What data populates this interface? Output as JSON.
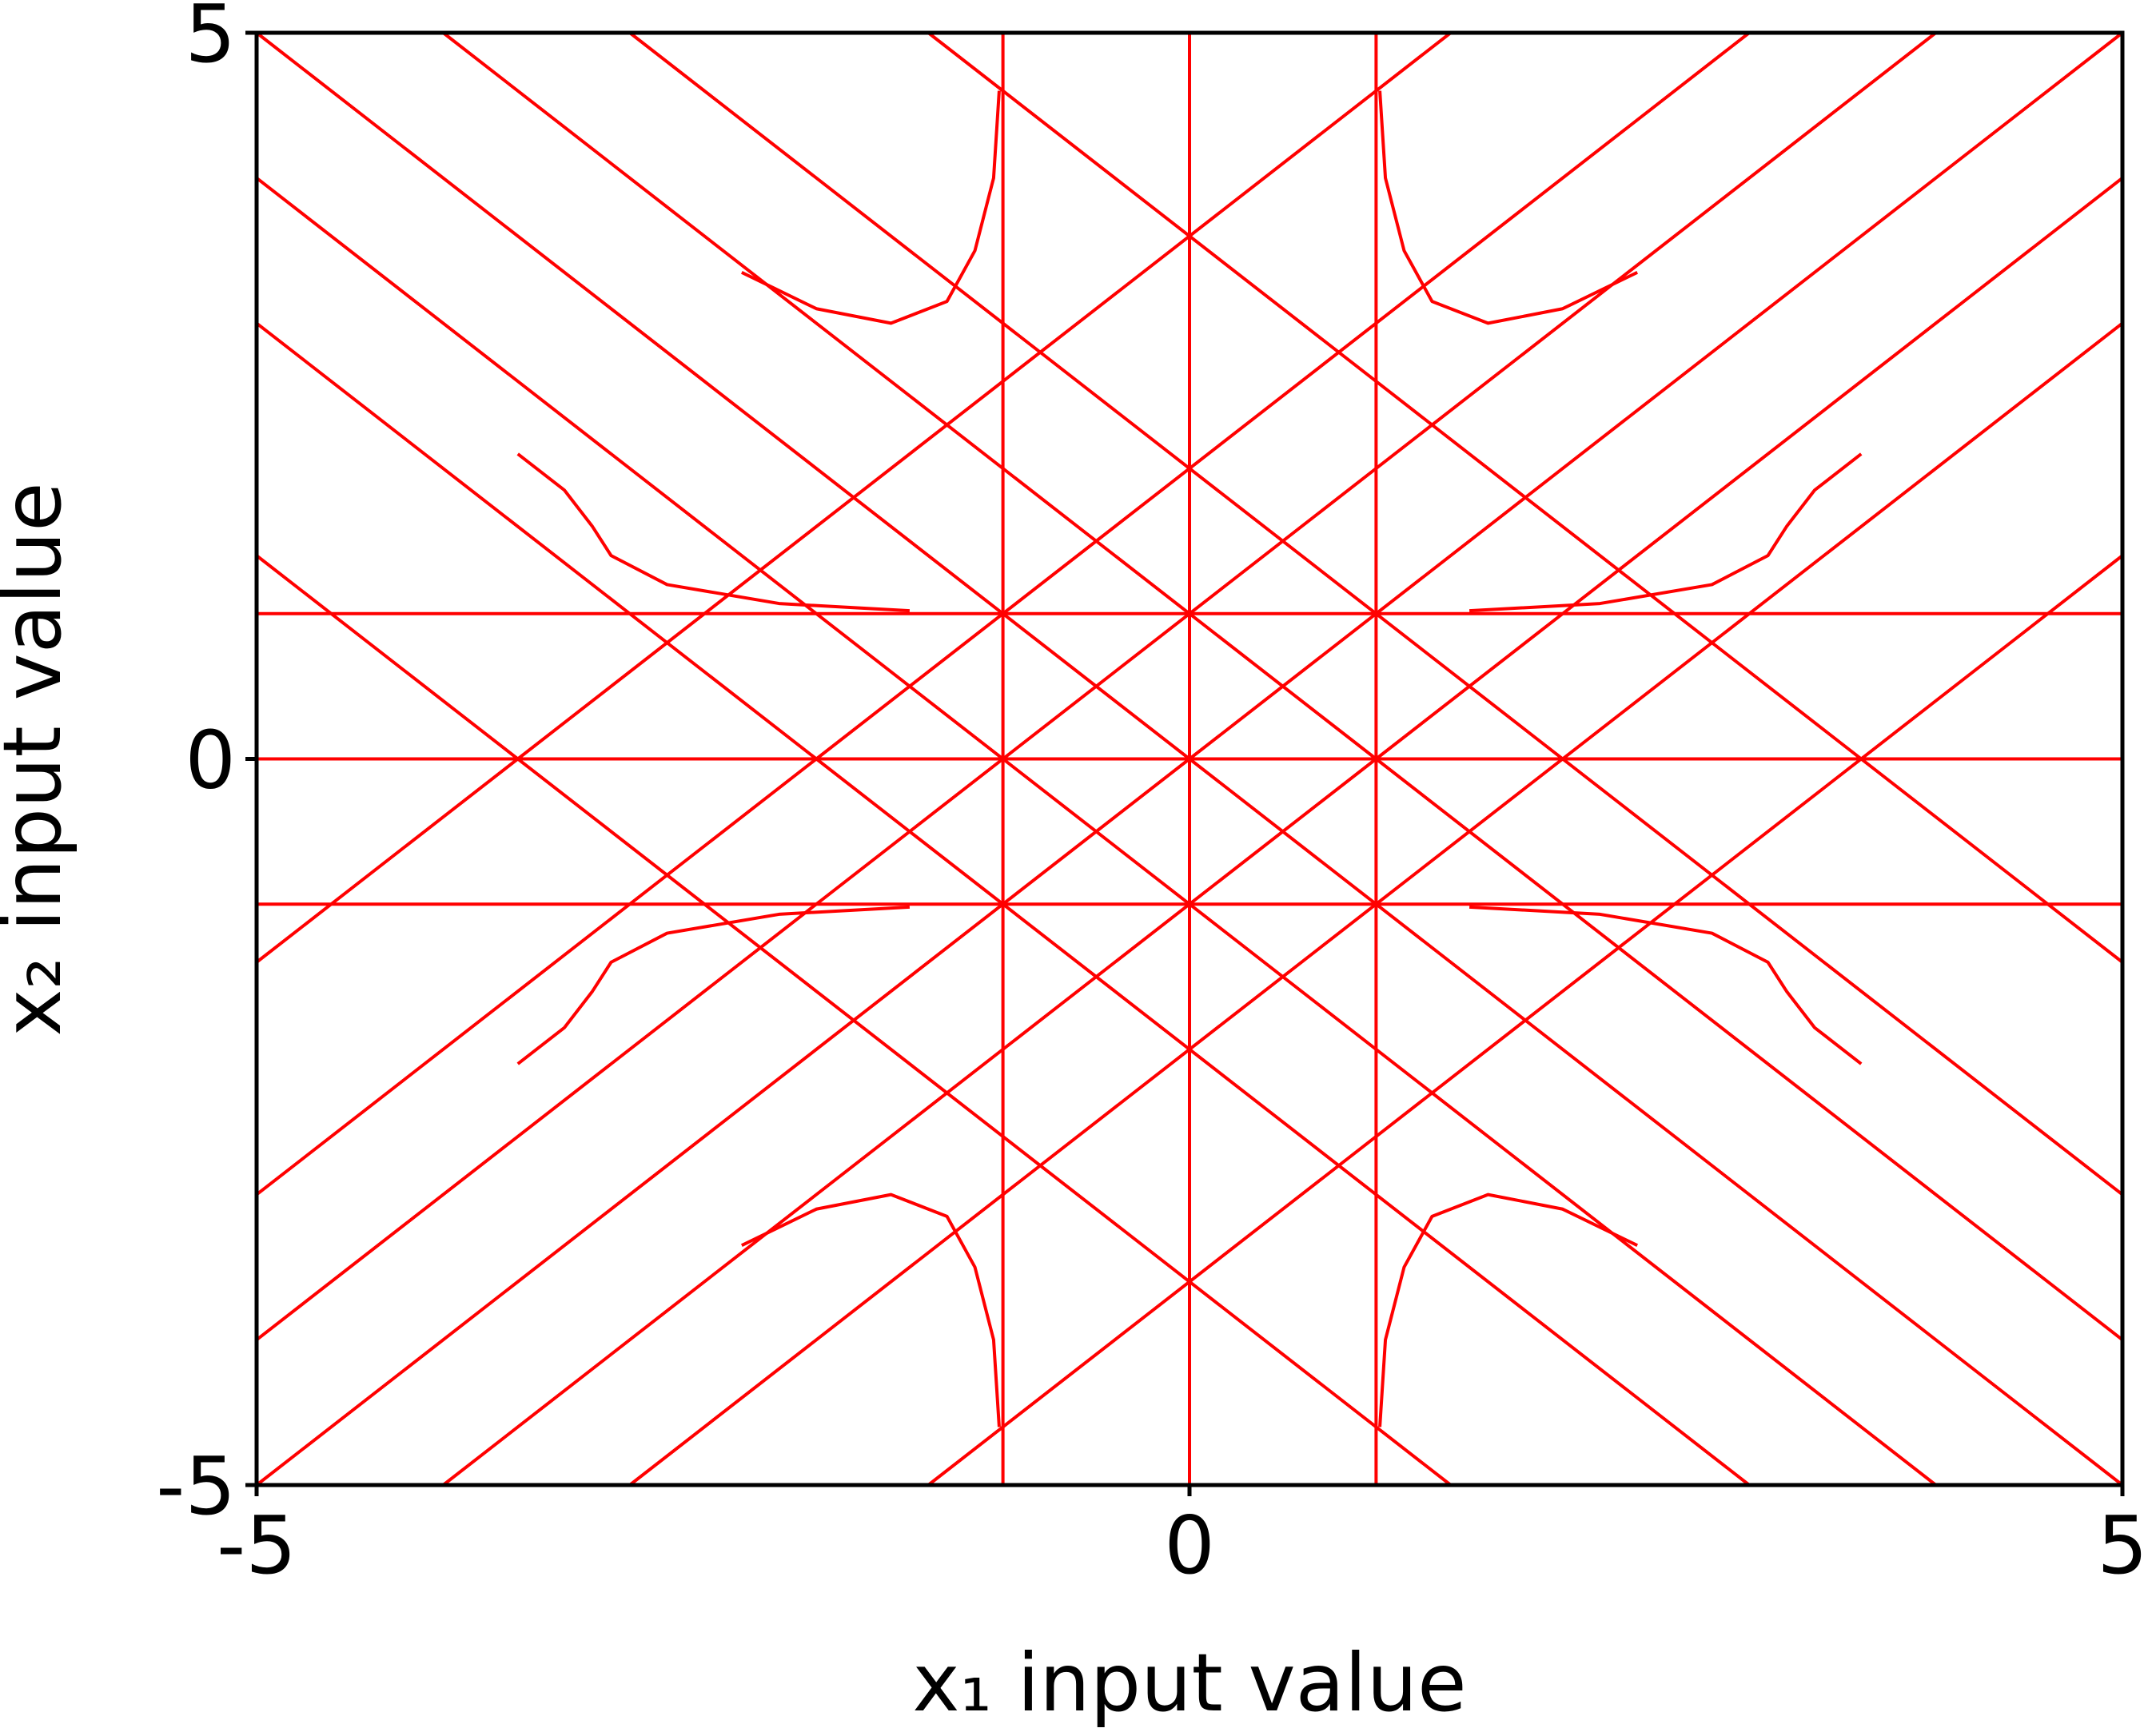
{
  "chart_data": {
    "type": "line",
    "xlabel": "x₁ input value",
    "ylabel": "x₂ input value",
    "xlim": [
      -5,
      5
    ],
    "ylim": [
      -5,
      5
    ],
    "xticks": [
      -5,
      0,
      5
    ],
    "yticks": [
      -5,
      0,
      5
    ],
    "grid": false,
    "color": "#ff0000",
    "series": [
      {
        "x": [
          -1,
          -1
        ],
        "values": [
          -5,
          5
        ]
      },
      {
        "x": [
          0,
          0
        ],
        "values": [
          -5,
          5
        ]
      },
      {
        "x": [
          1,
          1
        ],
        "values": [
          -5,
          5
        ]
      },
      {
        "x": [
          -5,
          5
        ],
        "values": [
          1,
          1
        ]
      },
      {
        "x": [
          -5,
          5
        ],
        "values": [
          0,
          0
        ]
      },
      {
        "x": [
          -5,
          5
        ],
        "values": [
          -1,
          -1
        ]
      },
      {
        "x": [
          -5,
          5
        ],
        "values": [
          -5,
          5
        ]
      },
      {
        "x": [
          -5,
          4
        ],
        "values": [
          -4,
          5
        ]
      },
      {
        "x": [
          -4,
          5
        ],
        "values": [
          -5,
          4
        ]
      },
      {
        "x": [
          -5,
          3
        ],
        "values": [
          -3,
          5
        ]
      },
      {
        "x": [
          -3,
          5
        ],
        "values": [
          -5,
          3
        ]
      },
      {
        "x": [
          -5,
          1.4
        ],
        "values": [
          -1.4,
          5
        ]
      },
      {
        "x": [
          -1.4,
          5
        ],
        "values": [
          -5,
          1.4
        ]
      },
      {
        "x": [
          -5,
          5
        ],
        "values": [
          5,
          -5
        ]
      },
      {
        "x": [
          -4,
          5
        ],
        "values": [
          5,
          -4
        ]
      },
      {
        "x": [
          -5,
          4
        ],
        "values": [
          4,
          -5
        ]
      },
      {
        "x": [
          -3,
          5
        ],
        "values": [
          5,
          -3
        ]
      },
      {
        "x": [
          -5,
          3
        ],
        "values": [
          3,
          -5
        ]
      },
      {
        "x": [
          -1.4,
          5
        ],
        "values": [
          5,
          -1.4
        ]
      },
      {
        "x": [
          -5,
          1.4
        ],
        "values": [
          1.4,
          -5
        ]
      },
      {
        "x": [
          -3.6,
          -3.35,
          -3.2,
          -3.1,
          -2.8,
          -2.2,
          -1.5
        ],
        "values": [
          2.1,
          1.85,
          1.6,
          1.4,
          1.2,
          1.07,
          1.02
        ]
      },
      {
        "x": [
          -3.6,
          -3.35,
          -3.2,
          -3.1,
          -2.8,
          -2.2,
          -1.5
        ],
        "values": [
          -2.1,
          -1.85,
          -1.6,
          -1.4,
          -1.2,
          -1.07,
          -1.02
        ]
      },
      {
        "x": [
          3.6,
          3.35,
          3.2,
          3.1,
          2.8,
          2.2,
          1.5
        ],
        "values": [
          2.1,
          1.85,
          1.6,
          1.4,
          1.2,
          1.07,
          1.02
        ]
      },
      {
        "x": [
          3.6,
          3.35,
          3.2,
          3.1,
          2.8,
          2.2,
          1.5
        ],
        "values": [
          -2.1,
          -1.85,
          -1.6,
          -1.4,
          -1.2,
          -1.07,
          -1.02
        ]
      },
      {
        "x": [
          -1.02,
          -1.05,
          -1.15,
          -1.3,
          -1.6,
          -2.0,
          -2.4
        ],
        "values": [
          4.6,
          4.0,
          3.5,
          3.15,
          3.0,
          3.1,
          3.35
        ]
      },
      {
        "x": [
          1.02,
          1.05,
          1.15,
          1.3,
          1.6,
          2.0,
          2.4
        ],
        "values": [
          4.6,
          4.0,
          3.5,
          3.15,
          3.0,
          3.1,
          3.35
        ]
      },
      {
        "x": [
          -1.02,
          -1.05,
          -1.15,
          -1.3,
          -1.6,
          -2.0,
          -2.4
        ],
        "values": [
          -4.6,
          -4.0,
          -3.5,
          -3.15,
          -3.0,
          -3.1,
          -3.35
        ]
      },
      {
        "x": [
          1.02,
          1.05,
          1.15,
          1.3,
          1.6,
          2.0,
          2.4
        ],
        "values": [
          -4.6,
          -4.0,
          -3.5,
          -3.15,
          -3.0,
          -3.1,
          -3.35
        ]
      }
    ]
  }
}
